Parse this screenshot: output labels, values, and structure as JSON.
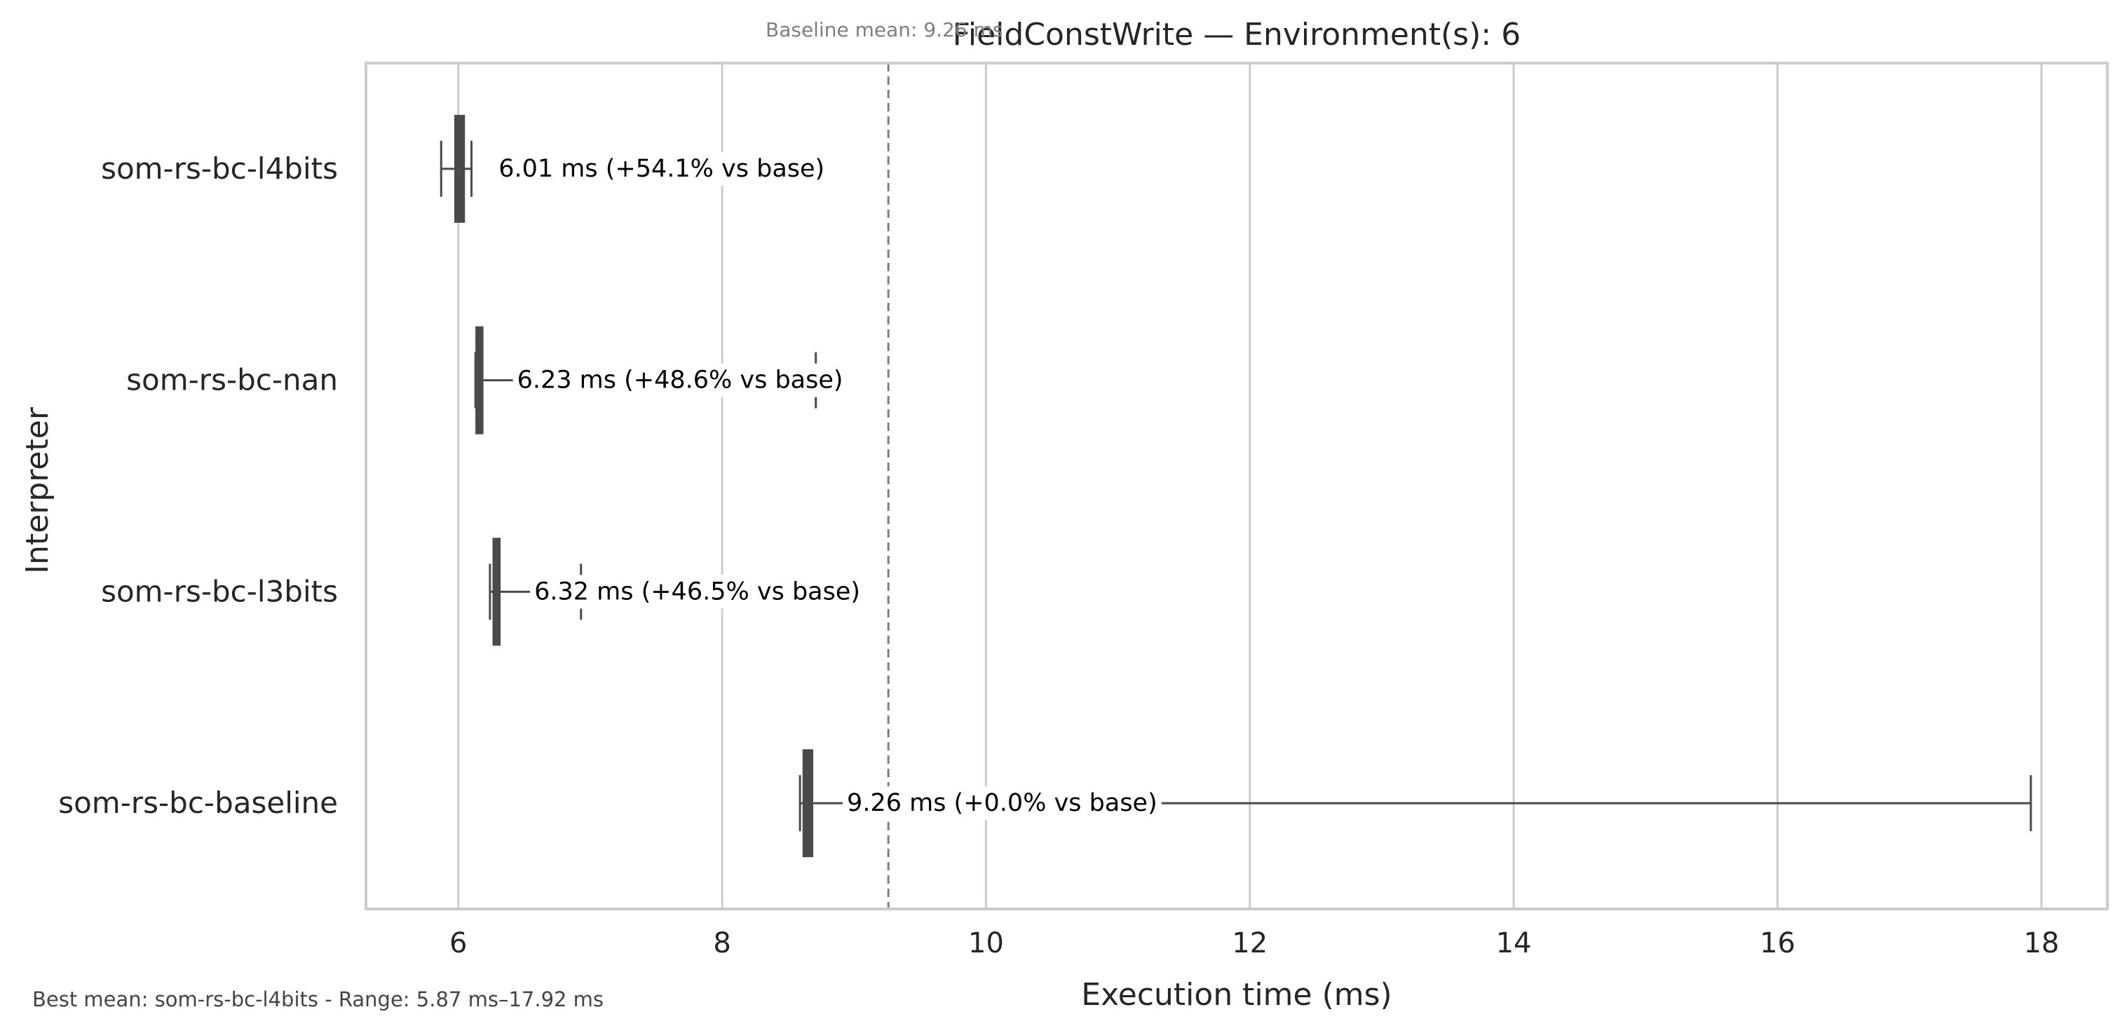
{
  "chart_data": {
    "type": "boxplot",
    "orientation": "horizontal",
    "title": "FieldConstWrite — Environment(s): 6",
    "xlabel": "Execution time (ms)",
    "ylabel": "Interpreter",
    "xlim": [
      5.3,
      18.5
    ],
    "x_ticks": [
      6,
      8,
      10,
      12,
      14,
      16,
      18
    ],
    "grid": "vertical",
    "categories": [
      "som-rs-bc-l4bits",
      "som-rs-bc-nan",
      "som-rs-bc-l3bits",
      "som-rs-bc-baseline"
    ],
    "series": [
      {
        "whisker_low": 5.87,
        "q1": 5.98,
        "median": 6.0,
        "q3": 6.04,
        "whisker_high": 6.1,
        "label": "6.01 ms  (+54.1% vs base)"
      },
      {
        "whisker_low": 6.13,
        "q1": 6.14,
        "median": 6.15,
        "q3": 6.18,
        "whisker_high": 8.71,
        "label": "6.23 ms  (+48.6% vs base)"
      },
      {
        "whisker_low": 6.24,
        "q1": 6.27,
        "median": 6.28,
        "q3": 6.31,
        "whisker_high": 6.93,
        "label": "6.32 ms  (+46.5% vs base)"
      },
      {
        "whisker_low": 8.59,
        "q1": 8.62,
        "median": 8.64,
        "q3": 8.68,
        "whisker_high": 17.92,
        "label": "9.26 ms  (+0.0% vs base)"
      }
    ],
    "reference_line": {
      "value": 9.26,
      "label": "Baseline mean: 9.26 ms"
    },
    "footnote": "Best mean: som-rs-bc-l4bits - Range: 5.87 ms–17.92 ms"
  },
  "colors": {
    "box": "#4a4a4a",
    "grid": "#cccccc",
    "frame": "#cccccc",
    "reference": "#7f7f7f",
    "text": "#262626"
  }
}
